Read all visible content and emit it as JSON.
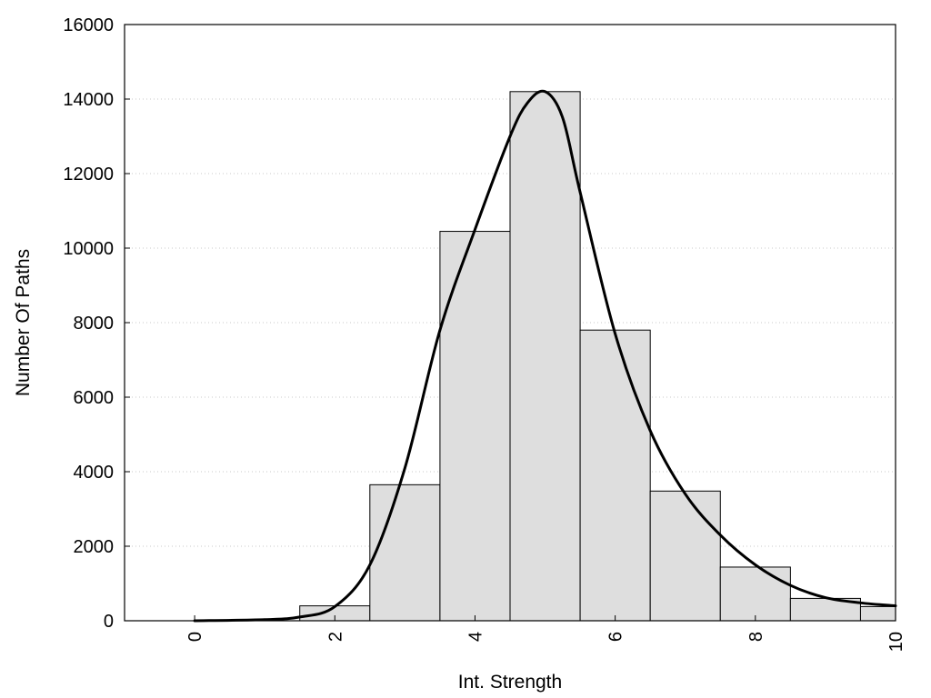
{
  "chart_data": {
    "type": "bar",
    "xlabel": "Int. Strength",
    "ylabel": "Number Of Paths",
    "xlim": [
      -1,
      10
    ],
    "ylim": [
      0,
      16000
    ],
    "grid": true,
    "x_ticks": [
      0,
      2,
      4,
      6,
      8,
      10
    ],
    "y_ticks": [
      0,
      2000,
      4000,
      6000,
      8000,
      10000,
      12000,
      14000,
      16000
    ],
    "bin_width": 1,
    "bins": [
      {
        "x": 0,
        "value": 0
      },
      {
        "x": 1,
        "value": 0
      },
      {
        "x": 2,
        "value": 400
      },
      {
        "x": 3,
        "value": 3650
      },
      {
        "x": 4,
        "value": 10450
      },
      {
        "x": 5,
        "value": 14200
      },
      {
        "x": 6,
        "value": 7800
      },
      {
        "x": 7,
        "value": 3480
      },
      {
        "x": 8,
        "value": 1440
      },
      {
        "x": 9,
        "value": 600
      },
      {
        "x": 10,
        "value": 380
      }
    ],
    "curve": [
      [
        0,
        0
      ],
      [
        1,
        30
      ],
      [
        1.5,
        100
      ],
      [
        2,
        380
      ],
      [
        2.5,
        1500
      ],
      [
        3,
        4100
      ],
      [
        3.5,
        7800
      ],
      [
        4,
        10500
      ],
      [
        4.5,
        13000
      ],
      [
        4.75,
        13900
      ],
      [
        5,
        14200
      ],
      [
        5.25,
        13500
      ],
      [
        5.5,
        11500
      ],
      [
        6,
        7700
      ],
      [
        6.5,
        5100
      ],
      [
        7,
        3400
      ],
      [
        7.5,
        2300
      ],
      [
        8,
        1500
      ],
      [
        8.5,
        950
      ],
      [
        9,
        620
      ],
      [
        9.5,
        480
      ],
      [
        10,
        400
      ]
    ]
  }
}
